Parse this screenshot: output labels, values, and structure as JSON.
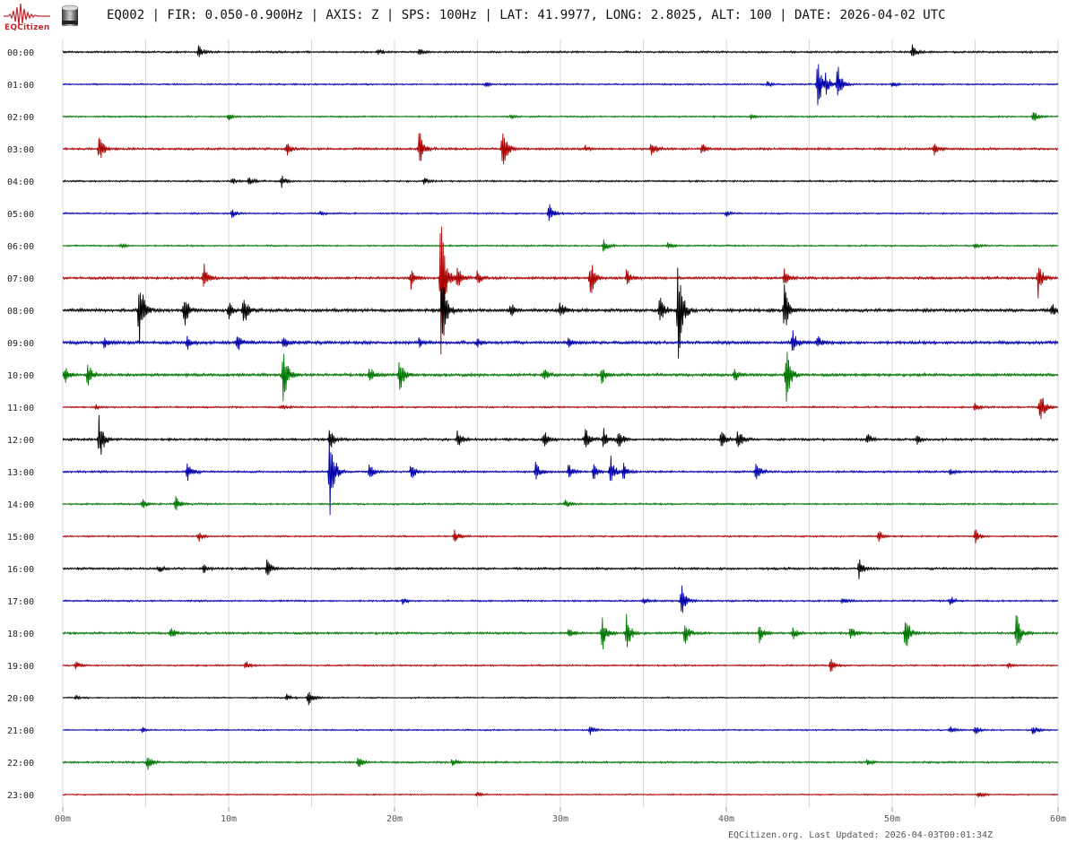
{
  "header": {
    "logo_text": "EQCitizen",
    "logo_icon": "seismogram-logo-icon",
    "sensor_icon": "seismometer-icon",
    "title": "EQ002 | FIR: 0.050-0.900Hz | AXIS: Z | SPS: 100Hz | LAT: 41.9977, LONG: 2.8025, ALT: 100 | DATE: 2026-04-02 UTC"
  },
  "footer": {
    "text": "EQCitizen.org. Last Updated: 2026-04-03T00:01:34Z"
  },
  "chart_data": {
    "type": "line",
    "subtype": "helicorder",
    "title": "",
    "xlabel": "",
    "ylabel": "",
    "xlim": [
      0,
      60
    ],
    "x_ticks": [
      "00m",
      "10m",
      "20m",
      "30m",
      "40m",
      "50m",
      "60m"
    ],
    "x_tick_values": [
      0,
      10,
      20,
      30,
      40,
      50,
      60
    ],
    "minor_gridlines_minutes": [
      5,
      15,
      25,
      35,
      45,
      55
    ],
    "grid": true,
    "trace_colors": [
      "#000000",
      "#0000aa",
      "#007700",
      "#aa0000"
    ],
    "rows": [
      {
        "label": "00:00",
        "noise": 1.2,
        "events": [
          {
            "t": 8.2,
            "a": 9
          },
          {
            "t": 19.0,
            "a": 3
          },
          {
            "t": 21.5,
            "a": 4
          },
          {
            "t": 51.2,
            "a": 8
          }
        ]
      },
      {
        "label": "01:00",
        "noise": 1.0,
        "events": [
          {
            "t": 25.5,
            "a": 3
          },
          {
            "t": 42.5,
            "a": 4
          },
          {
            "t": 45.5,
            "a": 34
          },
          {
            "t": 46.0,
            "a": 12
          },
          {
            "t": 46.7,
            "a": 24
          },
          {
            "t": 50.0,
            "a": 3
          }
        ]
      },
      {
        "label": "02:00",
        "noise": 1.0,
        "events": [
          {
            "t": 10.0,
            "a": 5
          },
          {
            "t": 27.0,
            "a": 3
          },
          {
            "t": 41.5,
            "a": 3
          },
          {
            "t": 58.5,
            "a": 8
          }
        ]
      },
      {
        "label": "03:00",
        "noise": 1.4,
        "events": [
          {
            "t": 2.2,
            "a": 18
          },
          {
            "t": 13.5,
            "a": 8
          },
          {
            "t": 21.5,
            "a": 22
          },
          {
            "t": 26.5,
            "a": 30
          },
          {
            "t": 31.5,
            "a": 4
          },
          {
            "t": 35.5,
            "a": 12
          },
          {
            "t": 38.5,
            "a": 7
          },
          {
            "t": 52.5,
            "a": 8
          }
        ]
      },
      {
        "label": "04:00",
        "noise": 1.1,
        "events": [
          {
            "t": 10.2,
            "a": 4
          },
          {
            "t": 11.2,
            "a": 5
          },
          {
            "t": 13.2,
            "a": 7
          },
          {
            "t": 21.8,
            "a": 4
          }
        ]
      },
      {
        "label": "05:00",
        "noise": 1.0,
        "events": [
          {
            "t": 10.2,
            "a": 5
          },
          {
            "t": 15.5,
            "a": 3
          },
          {
            "t": 29.3,
            "a": 15
          },
          {
            "t": 40.0,
            "a": 3
          }
        ]
      },
      {
        "label": "06:00",
        "noise": 1.0,
        "events": [
          {
            "t": 3.5,
            "a": 3
          },
          {
            "t": 32.6,
            "a": 9
          },
          {
            "t": 36.5,
            "a": 4
          },
          {
            "t": 55.0,
            "a": 3
          }
        ]
      },
      {
        "label": "07:00",
        "noise": 1.6,
        "events": [
          {
            "t": 8.5,
            "a": 18
          },
          {
            "t": 21.0,
            "a": 12
          },
          {
            "t": 22.8,
            "a": 90
          },
          {
            "t": 23.8,
            "a": 14
          },
          {
            "t": 25.0,
            "a": 8
          },
          {
            "t": 31.8,
            "a": 28
          },
          {
            "t": 34.0,
            "a": 10
          },
          {
            "t": 43.5,
            "a": 12
          },
          {
            "t": 58.8,
            "a": 22
          }
        ]
      },
      {
        "label": "08:00",
        "noise": 2.0,
        "events": [
          {
            "t": 4.6,
            "a": 50
          },
          {
            "t": 7.3,
            "a": 22
          },
          {
            "t": 10.0,
            "a": 10
          },
          {
            "t": 10.9,
            "a": 22
          },
          {
            "t": 22.9,
            "a": 55
          },
          {
            "t": 27.0,
            "a": 10
          },
          {
            "t": 30.0,
            "a": 12
          },
          {
            "t": 36.0,
            "a": 20
          },
          {
            "t": 37.1,
            "a": 65
          },
          {
            "t": 43.5,
            "a": 28
          },
          {
            "t": 59.6,
            "a": 10
          }
        ]
      },
      {
        "label": "09:00",
        "noise": 2.0,
        "events": [
          {
            "t": 2.5,
            "a": 8
          },
          {
            "t": 7.5,
            "a": 10
          },
          {
            "t": 10.5,
            "a": 12
          },
          {
            "t": 13.3,
            "a": 10
          },
          {
            "t": 21.5,
            "a": 6
          },
          {
            "t": 25.0,
            "a": 5
          },
          {
            "t": 30.5,
            "a": 6
          },
          {
            "t": 44.0,
            "a": 16
          },
          {
            "t": 45.5,
            "a": 8
          }
        ]
      },
      {
        "label": "10:00",
        "noise": 1.8,
        "events": [
          {
            "t": 0.1,
            "a": 12
          },
          {
            "t": 1.5,
            "a": 16
          },
          {
            "t": 13.3,
            "a": 36
          },
          {
            "t": 18.5,
            "a": 10
          },
          {
            "t": 20.3,
            "a": 22
          },
          {
            "t": 29.0,
            "a": 8
          },
          {
            "t": 32.5,
            "a": 10
          },
          {
            "t": 40.5,
            "a": 8
          },
          {
            "t": 43.6,
            "a": 38
          }
        ]
      },
      {
        "label": "11:00",
        "noise": 1.1,
        "events": [
          {
            "t": 2.0,
            "a": 3
          },
          {
            "t": 13.2,
            "a": 3
          },
          {
            "t": 55.0,
            "a": 6
          },
          {
            "t": 58.9,
            "a": 26
          }
        ]
      },
      {
        "label": "12:00",
        "noise": 1.5,
        "events": [
          {
            "t": 2.2,
            "a": 30
          },
          {
            "t": 16.1,
            "a": 14
          },
          {
            "t": 23.8,
            "a": 12
          },
          {
            "t": 29.0,
            "a": 12
          },
          {
            "t": 31.5,
            "a": 16
          },
          {
            "t": 32.6,
            "a": 14
          },
          {
            "t": 33.5,
            "a": 14
          },
          {
            "t": 39.7,
            "a": 14
          },
          {
            "t": 40.7,
            "a": 14
          },
          {
            "t": 48.5,
            "a": 7
          },
          {
            "t": 51.5,
            "a": 7
          }
        ]
      },
      {
        "label": "13:00",
        "noise": 1.3,
        "events": [
          {
            "t": 7.5,
            "a": 14
          },
          {
            "t": 16.1,
            "a": 60
          },
          {
            "t": 18.5,
            "a": 10
          },
          {
            "t": 21.0,
            "a": 10
          },
          {
            "t": 28.5,
            "a": 12
          },
          {
            "t": 30.5,
            "a": 10
          },
          {
            "t": 32.0,
            "a": 10
          },
          {
            "t": 33.0,
            "a": 22
          },
          {
            "t": 33.8,
            "a": 10
          },
          {
            "t": 41.8,
            "a": 14
          },
          {
            "t": 53.5,
            "a": 4
          }
        ]
      },
      {
        "label": "14:00",
        "noise": 1.1,
        "events": [
          {
            "t": 4.8,
            "a": 6
          },
          {
            "t": 6.8,
            "a": 10
          },
          {
            "t": 30.3,
            "a": 5
          }
        ]
      },
      {
        "label": "15:00",
        "noise": 1.0,
        "events": [
          {
            "t": 8.2,
            "a": 6
          },
          {
            "t": 23.6,
            "a": 8
          },
          {
            "t": 49.2,
            "a": 7
          },
          {
            "t": 55.0,
            "a": 10
          }
        ]
      },
      {
        "label": "16:00",
        "noise": 1.4,
        "events": [
          {
            "t": 5.8,
            "a": 4
          },
          {
            "t": 8.5,
            "a": 5
          },
          {
            "t": 12.3,
            "a": 12
          },
          {
            "t": 48.0,
            "a": 12
          }
        ]
      },
      {
        "label": "17:00",
        "noise": 1.1,
        "events": [
          {
            "t": 20.5,
            "a": 4
          },
          {
            "t": 35.0,
            "a": 4
          },
          {
            "t": 37.3,
            "a": 22
          },
          {
            "t": 47.0,
            "a": 4
          },
          {
            "t": 53.5,
            "a": 6
          }
        ]
      },
      {
        "label": "18:00",
        "noise": 1.4,
        "events": [
          {
            "t": 6.5,
            "a": 8
          },
          {
            "t": 30.5,
            "a": 8
          },
          {
            "t": 32.5,
            "a": 24
          },
          {
            "t": 34.0,
            "a": 22
          },
          {
            "t": 37.5,
            "a": 14
          },
          {
            "t": 42.0,
            "a": 10
          },
          {
            "t": 44.0,
            "a": 10
          },
          {
            "t": 47.5,
            "a": 10
          },
          {
            "t": 50.8,
            "a": 24
          },
          {
            "t": 57.5,
            "a": 26
          }
        ]
      },
      {
        "label": "19:00",
        "noise": 1.0,
        "events": [
          {
            "t": 0.8,
            "a": 5
          },
          {
            "t": 11.0,
            "a": 6
          },
          {
            "t": 46.3,
            "a": 8
          },
          {
            "t": 57.0,
            "a": 3
          }
        ]
      },
      {
        "label": "20:00",
        "noise": 0.9,
        "events": [
          {
            "t": 0.8,
            "a": 3
          },
          {
            "t": 13.5,
            "a": 4
          },
          {
            "t": 14.8,
            "a": 12
          }
        ]
      },
      {
        "label": "21:00",
        "noise": 0.9,
        "events": [
          {
            "t": 4.8,
            "a": 3
          },
          {
            "t": 31.8,
            "a": 5
          },
          {
            "t": 53.5,
            "a": 5
          },
          {
            "t": 55.0,
            "a": 6
          },
          {
            "t": 58.5,
            "a": 6
          }
        ]
      },
      {
        "label": "22:00",
        "noise": 1.2,
        "events": [
          {
            "t": 5.1,
            "a": 12
          },
          {
            "t": 17.8,
            "a": 8
          },
          {
            "t": 23.5,
            "a": 6
          },
          {
            "t": 48.5,
            "a": 3
          }
        ]
      },
      {
        "label": "23:00",
        "noise": 0.8,
        "events": [
          {
            "t": 25.0,
            "a": 3
          },
          {
            "t": 55.2,
            "a": 5
          }
        ]
      }
    ]
  }
}
